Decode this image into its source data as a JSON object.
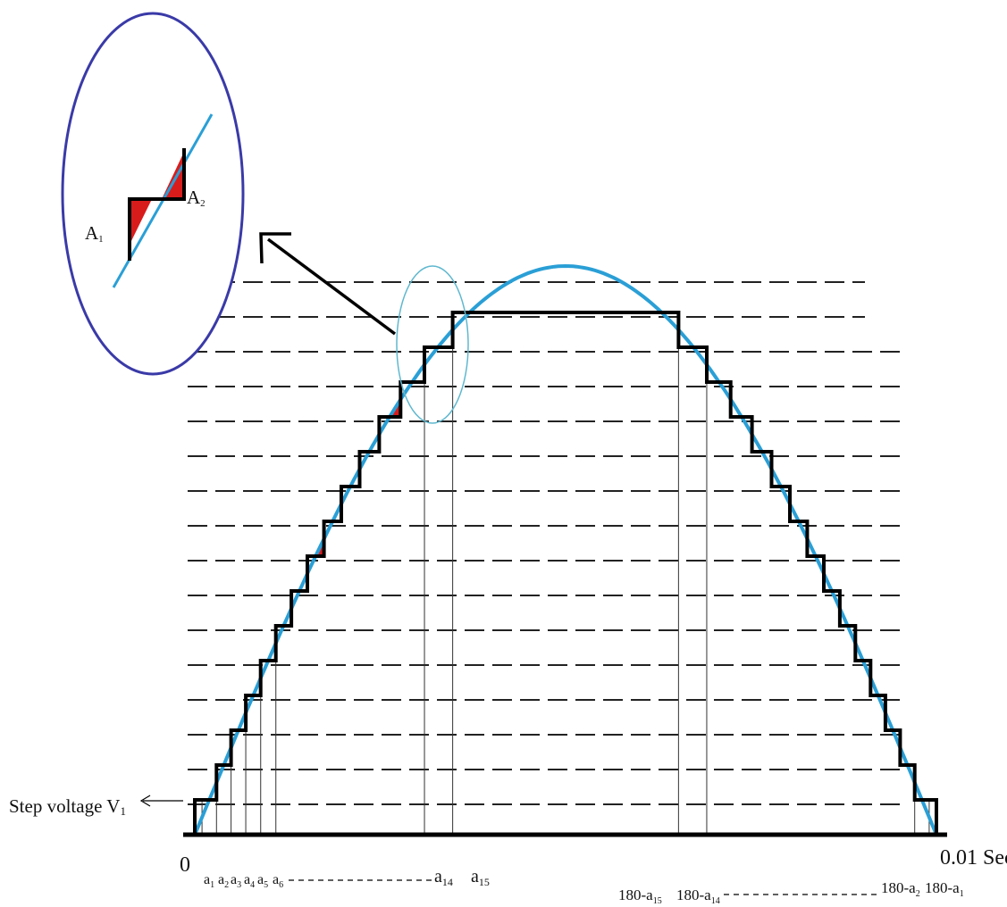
{
  "labels": {
    "origin": "0",
    "end": "0.01 Sec",
    "step_voltage": "Step voltage V",
    "step_voltage_sub": "1",
    "inset_a1": "A",
    "inset_a1_sub": "1",
    "inset_a2": "A",
    "inset_a2_sub": "2"
  },
  "angle_labels": {
    "left": [
      {
        "base": "a",
        "sub": "1"
      },
      {
        "base": "a",
        "sub": "2"
      },
      {
        "base": "a",
        "sub": "3"
      },
      {
        "base": "a",
        "sub": "4"
      },
      {
        "base": "a",
        "sub": "5"
      },
      {
        "base": "a",
        "sub": "6"
      },
      {
        "base": "a",
        "sub": "14"
      },
      {
        "base": "a",
        "sub": "15"
      }
    ],
    "right": [
      {
        "base": "180-a",
        "sub": "15"
      },
      {
        "base": "180-a",
        "sub": "14"
      },
      {
        "base": "180-a",
        "sub": "2"
      },
      {
        "base": "180-a",
        "sub": "1"
      }
    ]
  },
  "colors": {
    "sine": "#2a9fd6",
    "staircase": "#000000",
    "error_area": "#d81c1c",
    "inset_circle": "#3a3aa8",
    "zoom_circle": "#5fb8cf",
    "dashed_levels": "#222222",
    "axis": "#000000"
  },
  "diagram": {
    "levels": 15,
    "x_axis_end": "0.01 Sec",
    "waveform": "sine half-cycle approximated by staircase"
  }
}
